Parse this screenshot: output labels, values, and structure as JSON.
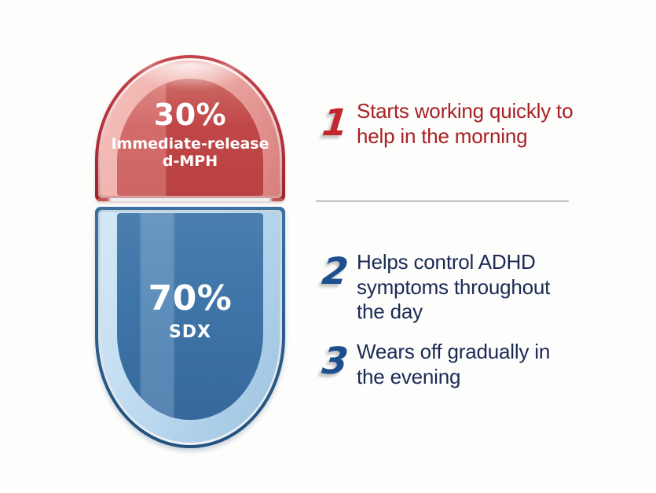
{
  "colors": {
    "bg": "#fdfdfc",
    "red-accent": "#c1272d",
    "red-text": "#a82025",
    "blue-accent": "#1d4f8e",
    "navy-text": "#1b2a55",
    "divider": "#99a0a5",
    "cap-rim": "#ab2a31",
    "cap-band": "#efaea9",
    "cap-core": "#ca4b4b",
    "body-rim": "#20517f",
    "body-band": "#bedaf0",
    "body-core": "#4079ae"
  },
  "capsule": {
    "top_section": {
      "percent": "30%",
      "label_lines": [
        "Immediate-release",
        "d-MPH"
      ]
    },
    "bottom_section": {
      "percent": "70%",
      "label": "SDX"
    }
  },
  "timeline": {
    "points": [
      {
        "number": "1",
        "lines": [
          "Starts working quickly to",
          "help in the morning"
        ]
      },
      {
        "number": "2",
        "lines": [
          "Helps control ADHD",
          "symptoms throughout",
          "the day"
        ]
      },
      {
        "number": "3",
        "lines": [
          "Wears off gradually in",
          "the evening"
        ]
      }
    ]
  }
}
